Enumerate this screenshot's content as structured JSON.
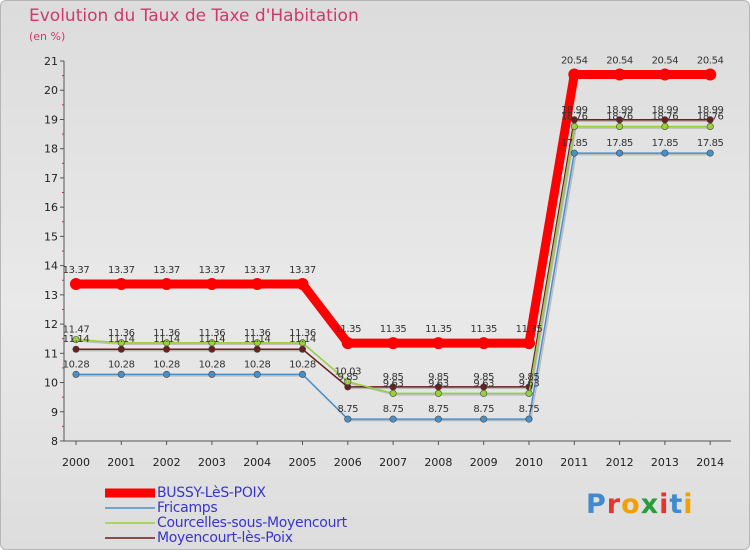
{
  "title": "Evolution du Taux de Taxe d'Habitation",
  "unit_label": "(en %)",
  "logo": {
    "text": "Proxiti",
    "colors": [
      "#3f8ad1",
      "#e6342e",
      "#f1a000",
      "#2a9b3b",
      "#e6342e",
      "#3f8ad1",
      "#f1a000"
    ]
  },
  "chart_data": {
    "type": "line",
    "title": "Evolution du Taux de Taxe d'Habitation",
    "ylabel": "(en %)",
    "xlabel": "",
    "ylim": [
      8,
      21
    ],
    "yticks": [
      "8",
      "9",
      "10",
      "11",
      "12",
      "13",
      "14",
      "15",
      "16",
      "17",
      "18",
      "19",
      "20",
      "21"
    ],
    "x": [
      "2000",
      "2001",
      "2002",
      "2003",
      "2004",
      "2005",
      "2006",
      "2007",
      "2008",
      "2009",
      "2010",
      "2011",
      "2012",
      "2013",
      "2014"
    ],
    "grid": false,
    "series": [
      {
        "name": "Moyencourt-lès-Poix",
        "color": "#6b1f1f",
        "values": [
          11.14,
          11.14,
          11.14,
          11.14,
          11.14,
          11.14,
          9.85,
          9.85,
          9.85,
          9.85,
          9.85,
          18.99,
          18.99,
          18.99,
          18.99
        ],
        "labels": [
          "11.14",
          "11.14",
          "11.14",
          "11.14",
          "11.14",
          "11.14",
          "9.85",
          "9.85",
          "9.85",
          "9.85",
          "9.85",
          "18.99",
          "18.99",
          "18.99",
          "18.99"
        ]
      },
      {
        "name": "Courcelles-sous-Moyencourt",
        "color": "#98d13c",
        "values": [
          11.47,
          11.36,
          11.36,
          11.36,
          11.36,
          11.36,
          10.03,
          9.63,
          9.63,
          9.63,
          9.63,
          18.76,
          18.76,
          18.76,
          18.76
        ],
        "labels": [
          "11.47",
          "11.36",
          "11.36",
          "11.36",
          "11.36",
          "11.36",
          "10.03",
          "9.63",
          "9.63",
          "9.63",
          "9.63",
          "18.76",
          "18.76",
          "18.76",
          "18.76"
        ]
      },
      {
        "name": "Fricamps",
        "color": "#4a90c8",
        "values": [
          10.28,
          10.28,
          10.28,
          10.28,
          10.28,
          10.28,
          8.75,
          8.75,
          8.75,
          8.75,
          8.75,
          17.85,
          17.85,
          17.85,
          17.85
        ],
        "labels": [
          "10.28",
          "10.28",
          "10.28",
          "10.28",
          "10.28",
          "10.28",
          "8.75",
          "8.75",
          "8.75",
          "8.75",
          "8.75",
          "17.85",
          "17.85",
          "17.85",
          "17.85"
        ]
      },
      {
        "name": "BUSSY-LèS-POIX",
        "color": "#ff0000",
        "values": [
          13.37,
          13.37,
          13.37,
          13.37,
          13.37,
          13.37,
          11.35,
          11.35,
          11.35,
          11.35,
          11.35,
          20.54,
          20.54,
          20.54,
          20.54
        ],
        "labels": [
          "13.37",
          "13.37",
          "13.37",
          "13.37",
          "13.37",
          "13.37",
          "11.35",
          "11.35",
          "11.35",
          "11.35",
          "11.35",
          "20.54",
          "20.54",
          "20.54",
          "20.54"
        ]
      }
    ],
    "legend": [
      "BUSSY-LèS-POIX",
      "Fricamps",
      "Courcelles-sous-Moyencourt",
      "Moyencourt-lès-Poix"
    ]
  }
}
